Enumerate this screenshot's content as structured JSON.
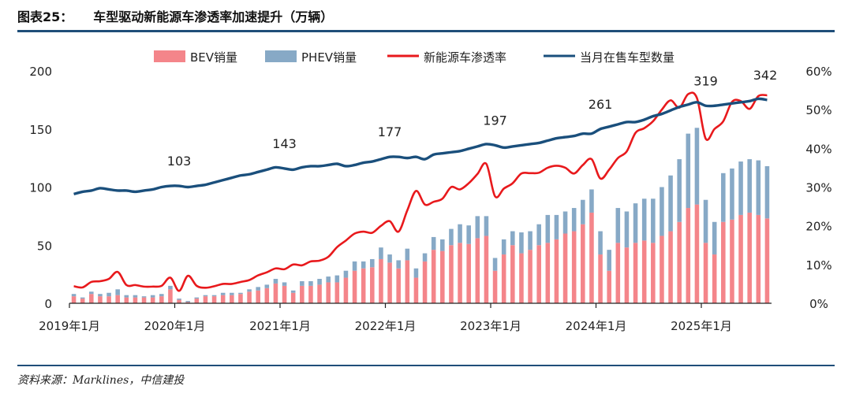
{
  "header": {
    "figure_number": "图表25：",
    "figure_title": "车型驱动新能源车渗透率加速提升（万辆）"
  },
  "footer": {
    "source": "资料来源：Marklines，中信建投"
  },
  "colors": {
    "bev": "#f4858a",
    "phev": "#87a9c6",
    "penetration": "#e8191c",
    "models": "#1a4f7c",
    "rule": "#1f4e79"
  },
  "chart_data": {
    "type": "bar",
    "title": "车型驱动新能源车渗透率加速提升（万辆）",
    "legend": [
      "BEV销量",
      "PHEV销量",
      "新能源车渗透率",
      "当月在售车型数量"
    ],
    "x_tick_labels": [
      "2019年1月",
      "2020年1月",
      "2021年1月",
      "2022年1月",
      "2023年1月",
      "2024年1月",
      "2025年1月"
    ],
    "x_tick_indices": [
      0,
      12,
      24,
      36,
      48,
      60,
      72
    ],
    "y_left": {
      "ticks": [
        "0",
        "50",
        "100",
        "150",
        "200"
      ],
      "ylim": [
        0,
        200
      ],
      "unit": "万辆"
    },
    "y_right": {
      "ticks": [
        "0%",
        "10%",
        "20%",
        "30%",
        "40%",
        "50%",
        "60%"
      ],
      "ylim": [
        0,
        0.6
      ]
    },
    "bev": [
      6,
      4,
      8,
      6,
      6,
      7,
      5,
      5,
      5,
      5,
      6,
      12,
      3,
      1,
      4,
      6,
      6,
      7,
      7,
      8,
      10,
      11,
      13,
      17,
      15,
      9,
      15,
      15,
      16,
      18,
      18,
      22,
      28,
      30,
      31,
      38,
      35,
      30,
      37,
      22,
      36,
      46,
      45,
      50,
      52,
      51,
      56,
      58,
      28,
      42,
      50,
      43,
      46,
      50,
      52,
      55,
      60,
      62,
      68,
      78,
      42,
      28,
      52,
      48,
      52,
      54,
      52,
      58,
      62,
      70,
      82,
      85,
      52,
      42,
      70,
      72,
      76,
      78,
      76,
      73
    ],
    "phev": [
      2,
      1,
      2,
      2,
      3,
      5,
      2,
      2,
      1,
      2,
      2,
      3,
      1,
      1,
      1,
      1,
      1,
      2,
      2,
      1,
      2,
      3,
      3,
      4,
      3,
      2,
      4,
      4,
      5,
      5,
      6,
      6,
      8,
      6,
      7,
      10,
      7,
      7,
      10,
      8,
      7,
      11,
      10,
      14,
      16,
      16,
      19,
      17,
      11,
      13,
      12,
      18,
      16,
      18,
      24,
      21,
      19,
      20,
      21,
      20,
      20,
      18,
      30,
      31,
      34,
      36,
      38,
      42,
      48,
      54,
      64,
      66,
      37,
      28,
      42,
      44,
      46,
      46,
      47,
      45
    ],
    "penetration": [
      0.044,
      0.041,
      0.055,
      0.057,
      0.063,
      0.081,
      0.047,
      0.047,
      0.043,
      0.043,
      0.045,
      0.066,
      0.032,
      0.071,
      0.045,
      0.04,
      0.044,
      0.05,
      0.05,
      0.055,
      0.06,
      0.072,
      0.08,
      0.09,
      0.088,
      0.1,
      0.098,
      0.108,
      0.11,
      0.12,
      0.145,
      0.162,
      0.18,
      0.185,
      0.182,
      0.2,
      0.212,
      0.185,
      0.24,
      0.29,
      0.255,
      0.262,
      0.27,
      0.3,
      0.294,
      0.31,
      0.334,
      0.36,
      0.276,
      0.296,
      0.31,
      0.335,
      0.336,
      0.337,
      0.35,
      0.355,
      0.35,
      0.335,
      0.357,
      0.372,
      0.322,
      0.345,
      0.375,
      0.392,
      0.44,
      0.452,
      0.47,
      0.5,
      0.524,
      0.505,
      0.54,
      0.53,
      0.425,
      0.45,
      0.47,
      0.52,
      0.522,
      0.502,
      0.535,
      0.537
    ],
    "models": [
      94,
      96,
      97,
      99,
      98,
      97,
      97,
      96,
      97,
      98,
      100,
      101,
      101,
      100,
      101,
      102,
      104,
      106,
      108,
      110,
      111,
      113,
      115,
      117,
      116,
      115,
      117,
      118,
      118,
      119,
      120,
      118,
      119,
      121,
      122,
      124,
      126,
      126,
      125,
      126,
      124,
      128,
      129,
      130,
      131,
      133,
      135,
      137,
      136,
      134,
      135,
      136,
      137,
      138,
      140,
      142,
      143,
      144,
      146,
      146,
      150,
      152,
      154,
      156,
      156,
      158,
      161,
      163,
      166,
      169,
      171,
      173,
      170,
      170,
      171,
      172,
      173,
      174,
      176,
      175
    ],
    "annotations": [
      {
        "index": 12,
        "label": "103"
      },
      {
        "index": 24,
        "label": "143"
      },
      {
        "index": 36,
        "label": "177"
      },
      {
        "index": 48,
        "label": "197"
      },
      {
        "index": 60,
        "label": "261"
      },
      {
        "index": 72,
        "label": "319"
      },
      {
        "index": 79,
        "label": "342"
      }
    ]
  }
}
